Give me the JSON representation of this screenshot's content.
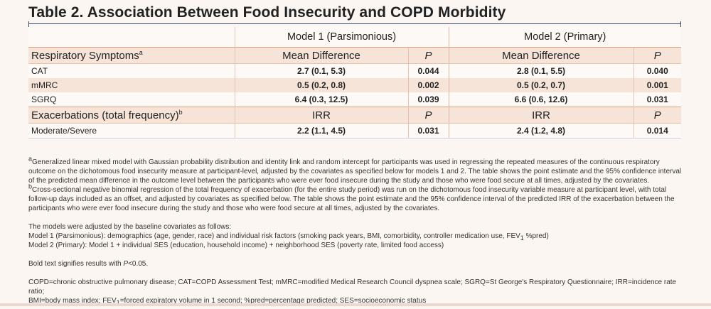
{
  "title": "Table 2. Association Between Food Insecurity and COPD Morbidity",
  "models": {
    "model1": "Model 1 (Parsimonious)",
    "model2": "Model 2 (Primary)"
  },
  "section1": {
    "label": "Respiratory Symptoms",
    "label_sup": "a",
    "col_mean": "Mean Difference",
    "col_p": "P",
    "rows": [
      {
        "label": "CAT",
        "m1": "2.7 (0.1, 5.3)",
        "p1": "0.044",
        "m2": "2.8 (0.1, 5.5)",
        "p2": "0.040"
      },
      {
        "label": "mMRC",
        "m1": "0.5 (0.2, 0.8)",
        "p1": "0.002",
        "m2": "0.5 (0.2, 0.7)",
        "p2": "0.001"
      },
      {
        "label": "SGRQ",
        "m1": "6.4 (0.3, 12.5)",
        "p1": "0.039",
        "m2": "6.6 (0.6, 12.6)",
        "p2": "0.031"
      }
    ]
  },
  "section2": {
    "label": "Exacerbations (total frequency)",
    "label_sup": "b",
    "col_mean": "IRR",
    "col_p": "P",
    "rows": [
      {
        "label": "Moderate/Severe",
        "m1": "2.2 (1.1, 4.5)",
        "p1": "0.031",
        "m2": "2.4 (1.2, 4.8)",
        "p2": "0.014"
      }
    ]
  },
  "notes": {
    "a_sup": "a",
    "a_text": "Generalized linear mixed model with Gaussian probability distribution and identity link and random intercept for participants was used in regressing the repeated measures of the continuous respiratory outcome on the dichotomous food insecurity measure at participant-level, adjusted by the covariates as specified below for models 1 and 2. The table shows the point estimate and the 95% confidence interval of the predicted mean difference in the outcome level between the participants who were ever food insecure during the study and those who were food secure at all times, adjusted by the covariates.",
    "b_sup": "b",
    "b_text": "Cross-sectional negative binomial regression of the total frequency of exacerbation (for the entire study period) was run on the dichotomous food insecurity variable measure at participant level, with total follow-up days included as an offset, and adjusted by covariates as specified below. The table shows the point estimate and the 95% confidence interval of the predicted IRR of the exacerbation between the participants who were ever food insecure during the study and those who were food secure at all times, adjusted by the covariates.",
    "adjusted_intro": "The models were adjusted by the baseline covariates as follows:",
    "model1_line": "Model 1 (Parsimonious): demographics (age, gender, race) and individual risk factors (smoking pack years, BMI, comorbidity, controller medication use, FEV",
    "model1_sub": "1",
    "model1_tail": " %pred)",
    "model2_line": "Model 2 (Primary): Model 1 + individual SES (education, household income) + neighborhood SES (poverty rate, limited food access)",
    "bold_prefix": "Bold text signifies results with ",
    "bold_p": "P",
    "bold_suffix": "<0.05.",
    "abbrev1": "COPD=chronic obstructive pulmonary disease; CAT=COPD Assessment Test; mMRC=modified Medical Research Council dyspnea scale; SGRQ=St George's Respiratory Questionnaire; IRR=incidence rate ratio;",
    "abbrev2a": "BMI=body mass index; FEV",
    "abbrev2_sub": "1",
    "abbrev2b": "=forced expiratory volume in 1 second; %pred=percentage predicted; SES=socioeconomic status"
  }
}
